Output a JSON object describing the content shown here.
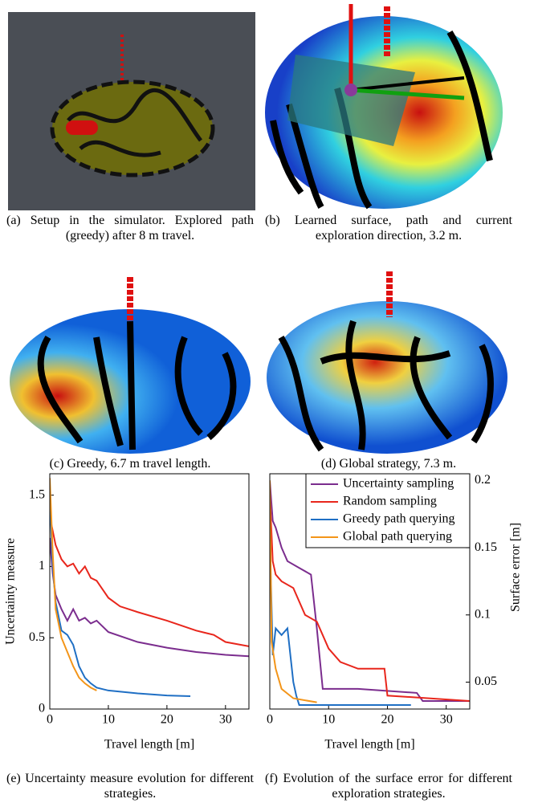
{
  "captions": [
    "(a) Setup in the simulator. Explored path (greedy) after 8 m travel.",
    "(b) Learned surface, path and current exploration direction, 3.2 m.",
    "(c) Greedy, 6.7 m travel length.",
    "(d) Global strategy, 7.3 m.",
    "(e) Uncertainty measure evolution for different strategies.",
    "(f) Evolution of the surface error for different exploration strategies."
  ],
  "chart_data": [
    {
      "type": "line",
      "xlabel": "Travel length [m]",
      "ylabel": "Uncertainty measure",
      "xlim": [
        0,
        34
      ],
      "xticks": [
        0,
        10,
        20,
        30
      ],
      "ylim": [
        0,
        1.65
      ],
      "yticks": [
        0,
        0.5,
        1,
        1.5
      ],
      "series": [
        {
          "color": "#7b2d8e",
          "x": [
            0,
            0.5,
            1,
            2,
            3,
            4,
            5,
            6,
            7,
            8,
            10,
            15,
            20,
            25,
            30,
            34
          ],
          "values": [
            1.2,
            0.95,
            0.8,
            0.7,
            0.62,
            0.7,
            0.62,
            0.64,
            0.6,
            0.62,
            0.54,
            0.47,
            0.43,
            0.4,
            0.38,
            0.37
          ]
        },
        {
          "color": "#e8261c",
          "x": [
            0,
            1,
            2,
            3,
            4,
            5,
            6,
            7,
            8,
            10,
            12,
            15,
            20,
            25,
            28,
            30,
            34
          ],
          "values": [
            1.35,
            1.15,
            1.05,
            1.0,
            1.02,
            0.95,
            1.0,
            0.92,
            0.9,
            0.78,
            0.72,
            0.68,
            0.62,
            0.55,
            0.52,
            0.47,
            0.44
          ]
        },
        {
          "color": "#1f6fc4",
          "x": [
            0,
            0.5,
            1,
            2,
            3,
            4,
            5,
            6,
            7,
            8,
            10,
            15,
            20,
            24
          ],
          "values": [
            1.5,
            1.0,
            0.75,
            0.55,
            0.52,
            0.45,
            0.3,
            0.22,
            0.18,
            0.15,
            0.13,
            0.11,
            0.095,
            0.09
          ]
        },
        {
          "color": "#f39519",
          "x": [
            0,
            0.5,
            1,
            2,
            3,
            4,
            5,
            6,
            7,
            8
          ],
          "values": [
            1.62,
            1.1,
            0.7,
            0.5,
            0.4,
            0.3,
            0.22,
            0.18,
            0.15,
            0.13
          ]
        }
      ]
    },
    {
      "type": "line",
      "xlabel": "Travel length [m]",
      "y2label": "Surface error [m]",
      "legend": "upper right",
      "xlim": [
        0,
        34
      ],
      "xticks": [
        0,
        10,
        20,
        30
      ],
      "y2lim": [
        0.03,
        0.205
      ],
      "y2ticks": [
        0.05,
        0.1,
        0.15,
        0.2
      ],
      "series": [
        {
          "name": "Uncertainty sampling",
          "color": "#7b2d8e",
          "axis": "y2",
          "x": [
            0,
            0.5,
            1,
            2,
            3,
            5,
            7,
            8,
            9,
            15,
            25,
            26,
            34
          ],
          "values": [
            0.2,
            0.17,
            0.165,
            0.15,
            0.14,
            0.135,
            0.13,
            0.09,
            0.045,
            0.045,
            0.042,
            0.036,
            0.036
          ]
        },
        {
          "name": "Random sampling",
          "color": "#e8261c",
          "axis": "y2",
          "x": [
            0,
            0.5,
            1,
            2,
            4,
            6,
            8,
            10,
            12,
            15,
            19.5,
            20,
            34
          ],
          "values": [
            0.19,
            0.14,
            0.13,
            0.125,
            0.12,
            0.1,
            0.095,
            0.075,
            0.065,
            0.06,
            0.06,
            0.04,
            0.036
          ]
        },
        {
          "name": "Greedy path querying",
          "color": "#1f6fc4",
          "axis": "y2",
          "x": [
            0,
            0.5,
            1,
            2,
            3,
            4,
            4.5,
            5,
            24
          ],
          "values": [
            0.16,
            0.07,
            0.09,
            0.085,
            0.09,
            0.05,
            0.04,
            0.033,
            0.033
          ]
        },
        {
          "name": "Global path querying",
          "color": "#f39519",
          "axis": "y2",
          "x": [
            0,
            0.3,
            1,
            2,
            4,
            8
          ],
          "values": [
            0.2,
            0.08,
            0.06,
            0.045,
            0.038,
            0.035
          ]
        }
      ]
    }
  ]
}
